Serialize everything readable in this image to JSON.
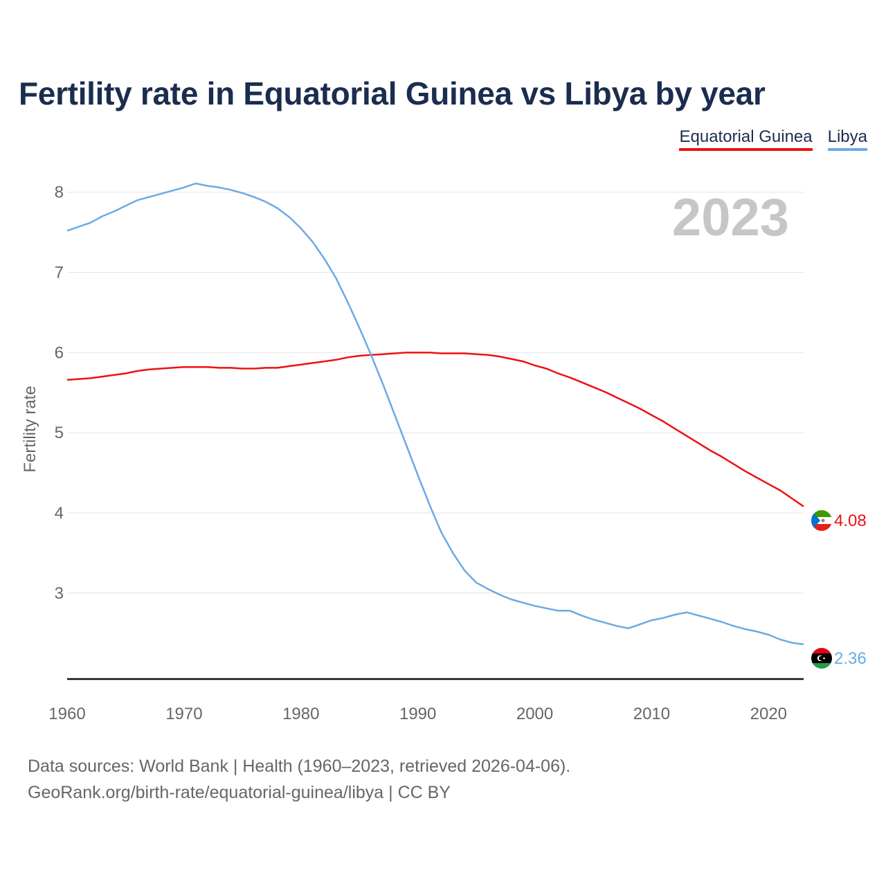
{
  "title": "Fertility rate in Equatorial Guinea vs Libya by year",
  "year_label": "2023",
  "legend": [
    {
      "name": "Equatorial Guinea",
      "color": "#ee1111"
    },
    {
      "name": "Libya",
      "color": "#6aaae4"
    }
  ],
  "end_labels": {
    "equatorial_guinea": "4.08",
    "libya": "2.36"
  },
  "flags": {
    "equatorial_guinea": "equatorial-guinea-flag-icon",
    "libya": "libya-flag-icon"
  },
  "sources": {
    "line1": "Data sources: World Bank | Health (1960–2023, retrieved 2026-04-06).",
    "line2": "GeoRank.org/birth-rate/equatorial-guinea/libya | CC BY"
  },
  "chart_data": {
    "type": "line",
    "title": "Fertility rate in Equatorial Guinea vs Libya by year",
    "xlabel": "",
    "ylabel": "Fertility rate",
    "xlim": [
      1960,
      2023
    ],
    "ylim": [
      2.1,
      8.3
    ],
    "xticks": [
      1960,
      1970,
      1980,
      1990,
      2000,
      2010,
      2020
    ],
    "yticks": [
      3,
      4,
      5,
      6,
      7,
      8
    ],
    "grid": true,
    "legend_position": "top-right",
    "x": [
      1960,
      1961,
      1962,
      1963,
      1964,
      1965,
      1966,
      1967,
      1968,
      1969,
      1970,
      1971,
      1972,
      1973,
      1974,
      1975,
      1976,
      1977,
      1978,
      1979,
      1980,
      1981,
      1982,
      1983,
      1984,
      1985,
      1986,
      1987,
      1988,
      1989,
      1990,
      1991,
      1992,
      1993,
      1994,
      1995,
      1996,
      1997,
      1998,
      1999,
      2000,
      2001,
      2002,
      2003,
      2004,
      2005,
      2006,
      2007,
      2008,
      2009,
      2010,
      2011,
      2012,
      2013,
      2014,
      2015,
      2016,
      2017,
      2018,
      2019,
      2020,
      2021,
      2022,
      2023
    ],
    "series": [
      {
        "name": "Equatorial Guinea",
        "color": "#ee1111",
        "values": [
          5.66,
          5.67,
          5.68,
          5.7,
          5.72,
          5.74,
          5.77,
          5.79,
          5.8,
          5.81,
          5.82,
          5.82,
          5.82,
          5.81,
          5.81,
          5.8,
          5.8,
          5.81,
          5.81,
          5.83,
          5.85,
          5.87,
          5.89,
          5.91,
          5.94,
          5.96,
          5.97,
          5.98,
          5.99,
          6.0,
          6.0,
          6.0,
          5.99,
          5.99,
          5.99,
          5.98,
          5.97,
          5.95,
          5.92,
          5.89,
          5.84,
          5.8,
          5.74,
          5.69,
          5.63,
          5.57,
          5.51,
          5.44,
          5.37,
          5.3,
          5.22,
          5.14,
          5.05,
          4.96,
          4.87,
          4.78,
          4.7,
          4.61,
          4.52,
          4.44,
          4.36,
          4.28,
          4.18,
          4.08
        ]
      },
      {
        "name": "Libya",
        "color": "#6aaae4",
        "values": [
          7.52,
          7.57,
          7.62,
          7.7,
          7.76,
          7.83,
          7.9,
          7.94,
          7.98,
          8.02,
          8.06,
          8.11,
          8.08,
          8.06,
          8.03,
          7.99,
          7.94,
          7.88,
          7.8,
          7.69,
          7.55,
          7.38,
          7.17,
          6.93,
          6.63,
          6.31,
          5.97,
          5.61,
          5.23,
          4.85,
          4.47,
          4.1,
          3.76,
          3.5,
          3.28,
          3.13,
          3.05,
          2.98,
          2.92,
          2.88,
          2.84,
          2.81,
          2.78,
          2.78,
          2.72,
          2.67,
          2.63,
          2.59,
          2.56,
          2.61,
          2.66,
          2.69,
          2.73,
          2.76,
          2.72,
          2.68,
          2.64,
          2.59,
          2.55,
          2.52,
          2.48,
          2.42,
          2.38,
          2.36
        ]
      }
    ]
  }
}
